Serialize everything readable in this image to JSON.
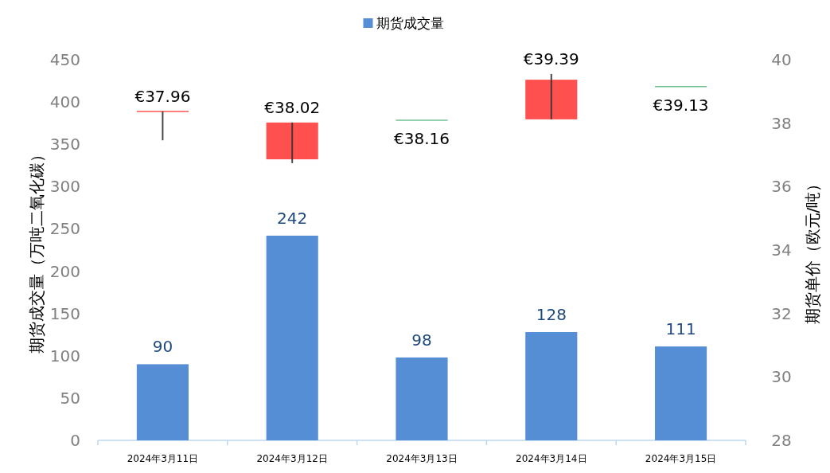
{
  "chart_data": {
    "type": "bar",
    "legend": "top",
    "ylabel": "期货成交量（万吨二氧化碳）",
    "y2label": "期货单价（欧元/吨）",
    "categories": [
      "2024年3月11日",
      "2024年3月12日",
      "2024年3月13日",
      "2024年3月14日",
      "2024年3月15日"
    ],
    "ylim": [
      0,
      450
    ],
    "yticks": [
      0,
      50,
      100,
      150,
      200,
      250,
      300,
      350,
      400,
      450
    ],
    "y2lim": [
      28,
      40
    ],
    "y2ticks": [
      28,
      30,
      32,
      34,
      36,
      38,
      40
    ],
    "series": [
      {
        "name": "期货成交量",
        "color": "#558ed5",
        "values": [
          90,
          242,
          98,
          128,
          111
        ],
        "data_labels": true
      },
      {
        "type": "candlestick",
        "axis": "y2",
        "ohlc": [
          [
            38.37,
            38.37,
            37.46,
            38.37
          ],
          [
            38.02,
            38.02,
            36.74,
            36.86
          ],
          [
            38.09,
            38.09,
            38.09,
            38.09
          ],
          [
            39.37,
            39.55,
            38.12,
            38.12
          ],
          [
            39.15,
            39.15,
            39.15,
            39.15
          ]
        ],
        "colors": [
          "#ff5050",
          "#ff5050",
          "#70c090",
          "#ff5050",
          "#70c090"
        ]
      }
    ],
    "annotations": [
      "€37.96",
      "€38.02",
      "€38.16",
      "€39.39",
      "€39.13"
    ]
  }
}
